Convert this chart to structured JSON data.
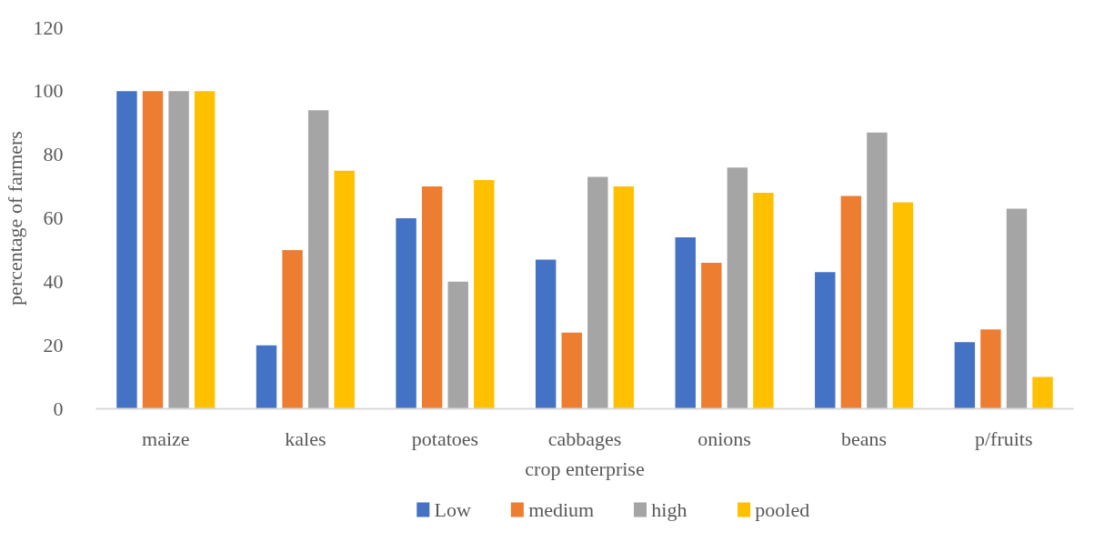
{
  "chart_data": {
    "type": "bar",
    "xlabel": "crop enterprise",
    "ylabel": "percentage of farmers",
    "categories": [
      "maize",
      "kales",
      "potatoes",
      "cabbages",
      "onions",
      "beans",
      "p/fruits"
    ],
    "series": [
      {
        "name": "Low",
        "color": "#4472c4",
        "values": [
          100,
          20,
          60,
          47,
          54,
          43,
          21
        ]
      },
      {
        "name": "medium",
        "color": "#ed7d31",
        "values": [
          100,
          50,
          70,
          24,
          46,
          67,
          25
        ]
      },
      {
        "name": "high",
        "color": "#a5a5a5",
        "values": [
          100,
          94,
          40,
          73,
          76,
          87,
          63
        ]
      },
      {
        "name": "pooled",
        "color": "#ffc000",
        "values": [
          100,
          75,
          72,
          70,
          68,
          65,
          10
        ]
      }
    ],
    "ylim": [
      0,
      120
    ],
    "yticks": [
      0,
      20,
      40,
      60,
      80,
      100,
      120
    ],
    "grid": false,
    "legend": "bottom"
  }
}
